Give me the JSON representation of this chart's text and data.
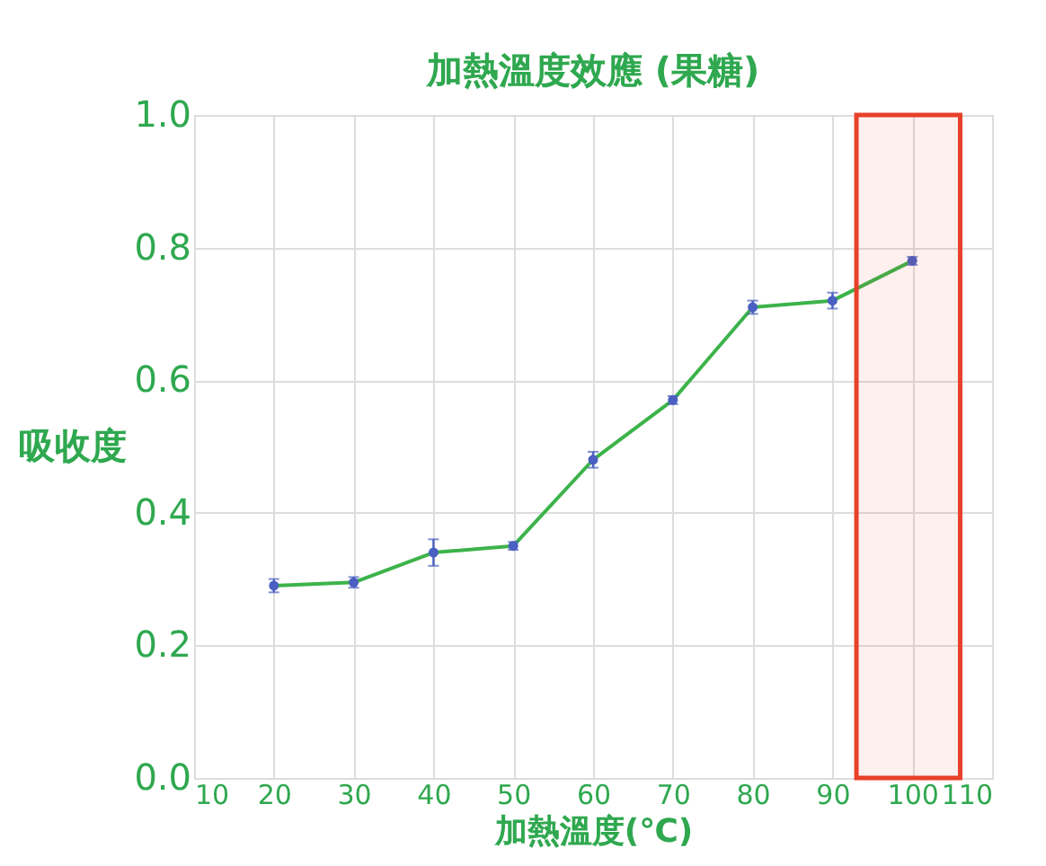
{
  "chart_data": {
    "type": "line",
    "title": "加熱溫度效應 (果糖)",
    "xlabel": "加熱溫度(℃)",
    "ylabel": "吸收度",
    "x": [
      20,
      30,
      40,
      50,
      60,
      70,
      80,
      90,
      100
    ],
    "series": [
      {
        "color": "#3cb34a",
        "values": [
          0.29,
          0.295,
          0.34,
          0.35,
          0.48,
          0.57,
          0.71,
          0.72,
          0.78
        ],
        "errors": [
          0.01,
          0.008,
          0.02,
          0.006,
          0.012,
          0.006,
          0.01,
          0.012,
          0.006
        ]
      }
    ],
    "xlim": [
      10,
      110
    ],
    "xticks": [
      10,
      20,
      30,
      40,
      50,
      60,
      70,
      80,
      90,
      100,
      110
    ],
    "ylim": [
      0,
      1
    ],
    "yticks": [
      {
        "value": 0,
        "label": "0.0"
      },
      0.2,
      0.4,
      0.6,
      0.8,
      {
        "value": 1,
        "label": "1.0"
      }
    ],
    "bands": [
      {
        "axis": "x",
        "from": 93,
        "to": 106,
        "color": "#e8402a"
      }
    ],
    "grid": true,
    "marker": "circle",
    "line_style": "solid"
  }
}
